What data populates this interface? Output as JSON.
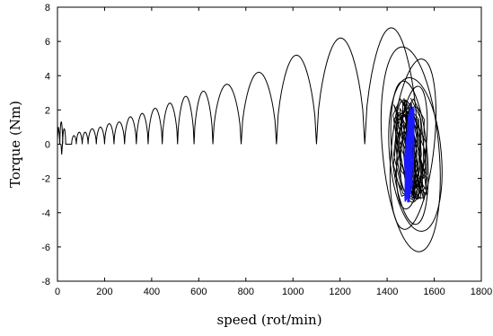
{
  "chart_data": {
    "type": "line",
    "title": "",
    "xlabel": "speed (rot/min)",
    "ylabel": "Torque (Nm)",
    "xlim": [
      0,
      1800
    ],
    "ylim": [
      -8,
      8
    ],
    "xticks": [
      0,
      200,
      400,
      600,
      800,
      1000,
      1200,
      1400,
      1600,
      1800
    ],
    "yticks": [
      -8,
      -6,
      -4,
      -2,
      0,
      2,
      4,
      6,
      8
    ],
    "grid": false,
    "legend": false,
    "colors": {
      "trace": "#000000",
      "steady_state": "#1a1aff",
      "axis": "#000000"
    },
    "series": [
      {
        "color": "#000000",
        "description_of_shape": "torque-speed trajectory with growing arcs returning to ~0 during acceleration",
        "arcs": [
          {
            "x_start": 10,
            "x_end": 22,
            "peak": 1.3
          },
          {
            "x_start": 22,
            "x_end": 35,
            "peak": 0.9
          },
          {
            "x_start": 60,
            "x_end": 80,
            "peak": 0.5
          },
          {
            "x_start": 80,
            "x_end": 105,
            "peak": 0.7
          },
          {
            "x_start": 105,
            "x_end": 130,
            "peak": 0.7
          },
          {
            "x_start": 130,
            "x_end": 165,
            "peak": 0.9
          },
          {
            "x_start": 165,
            "x_end": 200,
            "peak": 1.0
          },
          {
            "x_start": 200,
            "x_end": 240,
            "peak": 1.2
          },
          {
            "x_start": 240,
            "x_end": 285,
            "peak": 1.3
          },
          {
            "x_start": 285,
            "x_end": 335,
            "peak": 1.6
          },
          {
            "x_start": 335,
            "x_end": 385,
            "peak": 1.8
          },
          {
            "x_start": 385,
            "x_end": 445,
            "peak": 2.1
          },
          {
            "x_start": 445,
            "x_end": 510,
            "peak": 2.4
          },
          {
            "x_start": 510,
            "x_end": 580,
            "peak": 2.8
          },
          {
            "x_start": 580,
            "x_end": 660,
            "peak": 3.1
          },
          {
            "x_start": 660,
            "x_end": 780,
            "peak": 3.5
          },
          {
            "x_start": 780,
            "x_end": 930,
            "peak": 4.2
          },
          {
            "x_start": 930,
            "x_end": 1100,
            "peak": 5.2
          },
          {
            "x_start": 1100,
            "x_end": 1305,
            "peak": 6.2
          },
          {
            "x_start": 1305,
            "x_end": 1530,
            "peak": 6.8
          }
        ]
      }
    ],
    "limit_cycle": {
      "center_x": 1500,
      "center_y": 0,
      "loops": [
        {
          "rx": 120,
          "ry": 6.0,
          "cx": 1500,
          "cy": -0.3
        },
        {
          "rx": 90,
          "ry": 5.0,
          "cx": 1510,
          "cy": 0.0
        },
        {
          "rx": 75,
          "ry": 4.2,
          "cx": 1495,
          "cy": -0.5
        },
        {
          "rx": 60,
          "ry": 3.6,
          "cx": 1505,
          "cy": -0.2
        },
        {
          "rx": 50,
          "ry": 3.0,
          "cx": 1490,
          "cy": -0.4
        },
        {
          "rx": 40,
          "ry": 2.5,
          "cx": 1500,
          "cy": -0.3
        },
        {
          "rx": 110,
          "ry": 4.5,
          "cx": 1520,
          "cy": -0.6
        }
      ],
      "steady_state": {
        "rx": 22,
        "ry": 2.8,
        "cx": 1495,
        "cy": -0.6
      }
    }
  }
}
